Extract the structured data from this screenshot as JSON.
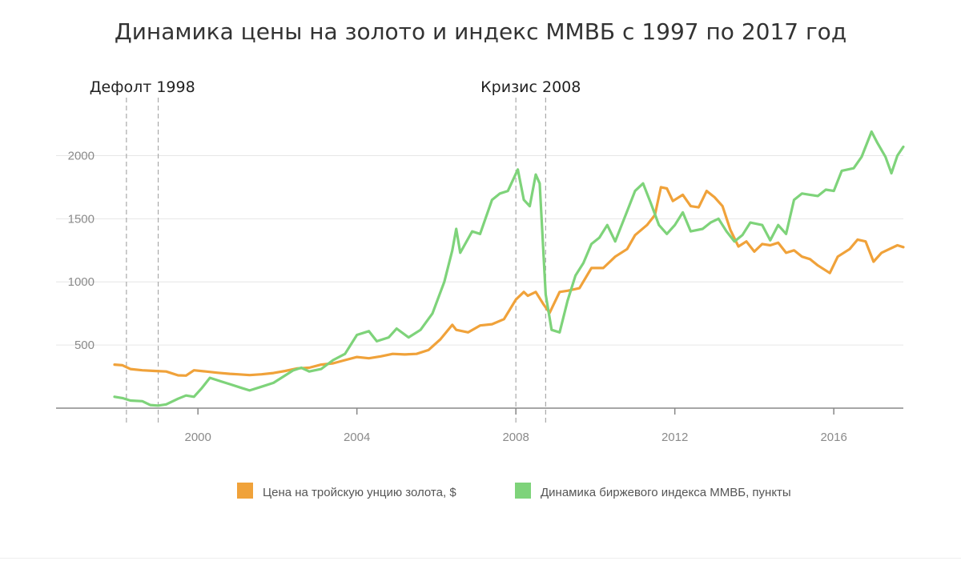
{
  "chart_data": {
    "type": "line",
    "title": "Динамика цены на золото и индекс ММВБ с 1997 по 2017 год",
    "xlabel": "",
    "ylabel": "",
    "xlim": [
      1997.8,
      2017.75
    ],
    "ylim": [
      0,
      2250
    ],
    "x_ticks": [
      2000,
      2004,
      2008,
      2012,
      2016
    ],
    "y_ticks": [
      500,
      1000,
      1500,
      2000
    ],
    "grid": true,
    "legend_position": "bottom",
    "events": [
      {
        "label": "Дефолт 1998",
        "x_start": 1998.2,
        "x_end": 1999.0
      },
      {
        "label": "Кризис 2008",
        "x_start": 2008.0,
        "x_end": 2008.75
      }
    ],
    "series": [
      {
        "name": "Цена на тройскую унцию золота, $",
        "color": "#f0a23a",
        "points": [
          [
            1997.9,
            345
          ],
          [
            1998.1,
            340
          ],
          [
            1998.3,
            310
          ],
          [
            1998.6,
            300
          ],
          [
            1998.9,
            295
          ],
          [
            1999.2,
            290
          ],
          [
            1999.5,
            260
          ],
          [
            1999.7,
            258
          ],
          [
            1999.9,
            300
          ],
          [
            2000.2,
            290
          ],
          [
            2000.5,
            280
          ],
          [
            2000.8,
            272
          ],
          [
            2001.0,
            268
          ],
          [
            2001.3,
            262
          ],
          [
            2001.6,
            268
          ],
          [
            2001.9,
            278
          ],
          [
            2002.2,
            295
          ],
          [
            2002.5,
            315
          ],
          [
            2002.8,
            320
          ],
          [
            2003.1,
            345
          ],
          [
            2003.4,
            355
          ],
          [
            2003.7,
            380
          ],
          [
            2004.0,
            405
          ],
          [
            2004.3,
            395
          ],
          [
            2004.6,
            410
          ],
          [
            2004.9,
            430
          ],
          [
            2005.2,
            425
          ],
          [
            2005.5,
            430
          ],
          [
            2005.8,
            460
          ],
          [
            2006.1,
            545
          ],
          [
            2006.4,
            660
          ],
          [
            2006.5,
            620
          ],
          [
            2006.8,
            600
          ],
          [
            2007.1,
            655
          ],
          [
            2007.4,
            665
          ],
          [
            2007.7,
            705
          ],
          [
            2008.0,
            860
          ],
          [
            2008.2,
            920
          ],
          [
            2008.3,
            890
          ],
          [
            2008.5,
            920
          ],
          [
            2008.7,
            820
          ],
          [
            2008.85,
            755
          ],
          [
            2009.1,
            920
          ],
          [
            2009.3,
            930
          ],
          [
            2009.6,
            950
          ],
          [
            2009.9,
            1110
          ],
          [
            2010.2,
            1110
          ],
          [
            2010.5,
            1200
          ],
          [
            2010.8,
            1260
          ],
          [
            2011.0,
            1370
          ],
          [
            2011.3,
            1450
          ],
          [
            2011.5,
            1530
          ],
          [
            2011.65,
            1750
          ],
          [
            2011.8,
            1740
          ],
          [
            2011.95,
            1640
          ],
          [
            2012.2,
            1690
          ],
          [
            2012.4,
            1600
          ],
          [
            2012.6,
            1590
          ],
          [
            2012.8,
            1720
          ],
          [
            2013.0,
            1670
          ],
          [
            2013.2,
            1600
          ],
          [
            2013.4,
            1410
          ],
          [
            2013.6,
            1280
          ],
          [
            2013.8,
            1320
          ],
          [
            2014.0,
            1240
          ],
          [
            2014.2,
            1300
          ],
          [
            2014.4,
            1290
          ],
          [
            2014.6,
            1310
          ],
          [
            2014.8,
            1230
          ],
          [
            2015.0,
            1250
          ],
          [
            2015.2,
            1200
          ],
          [
            2015.4,
            1180
          ],
          [
            2015.6,
            1130
          ],
          [
            2015.9,
            1070
          ],
          [
            2016.1,
            1200
          ],
          [
            2016.4,
            1260
          ],
          [
            2016.6,
            1335
          ],
          [
            2016.8,
            1320
          ],
          [
            2017.0,
            1160
          ],
          [
            2017.2,
            1230
          ],
          [
            2017.4,
            1260
          ],
          [
            2017.6,
            1290
          ],
          [
            2017.75,
            1275
          ]
        ]
      },
      {
        "name": "Динамика биржевого индекса ММВБ, пункты",
        "color": "#7ed37a",
        "points": [
          [
            1997.9,
            90
          ],
          [
            1998.1,
            80
          ],
          [
            1998.3,
            60
          ],
          [
            1998.6,
            55
          ],
          [
            1998.8,
            25
          ],
          [
            1999.0,
            20
          ],
          [
            1999.2,
            30
          ],
          [
            1999.5,
            75
          ],
          [
            1999.7,
            100
          ],
          [
            1999.9,
            90
          ],
          [
            2000.1,
            160
          ],
          [
            2000.3,
            240
          ],
          [
            2000.6,
            210
          ],
          [
            2000.8,
            190
          ],
          [
            2001.1,
            160
          ],
          [
            2001.3,
            140
          ],
          [
            2001.6,
            170
          ],
          [
            2001.9,
            200
          ],
          [
            2002.2,
            260
          ],
          [
            2002.4,
            300
          ],
          [
            2002.6,
            320
          ],
          [
            2002.8,
            290
          ],
          [
            2003.1,
            310
          ],
          [
            2003.4,
            380
          ],
          [
            2003.7,
            430
          ],
          [
            2004.0,
            580
          ],
          [
            2004.3,
            610
          ],
          [
            2004.5,
            530
          ],
          [
            2004.8,
            560
          ],
          [
            2005.0,
            630
          ],
          [
            2005.3,
            560
          ],
          [
            2005.6,
            620
          ],
          [
            2005.9,
            750
          ],
          [
            2006.2,
            1000
          ],
          [
            2006.4,
            1250
          ],
          [
            2006.5,
            1420
          ],
          [
            2006.6,
            1230
          ],
          [
            2006.9,
            1400
          ],
          [
            2007.1,
            1380
          ],
          [
            2007.4,
            1650
          ],
          [
            2007.6,
            1700
          ],
          [
            2007.8,
            1720
          ],
          [
            2008.05,
            1890
          ],
          [
            2008.2,
            1650
          ],
          [
            2008.35,
            1600
          ],
          [
            2008.5,
            1850
          ],
          [
            2008.6,
            1780
          ],
          [
            2008.75,
            900
          ],
          [
            2008.9,
            620
          ],
          [
            2009.1,
            600
          ],
          [
            2009.3,
            850
          ],
          [
            2009.5,
            1050
          ],
          [
            2009.7,
            1150
          ],
          [
            2009.9,
            1300
          ],
          [
            2010.1,
            1350
          ],
          [
            2010.3,
            1450
          ],
          [
            2010.5,
            1320
          ],
          [
            2010.8,
            1560
          ],
          [
            2011.0,
            1720
          ],
          [
            2011.2,
            1780
          ],
          [
            2011.4,
            1620
          ],
          [
            2011.6,
            1450
          ],
          [
            2011.8,
            1380
          ],
          [
            2012.0,
            1450
          ],
          [
            2012.2,
            1550
          ],
          [
            2012.4,
            1400
          ],
          [
            2012.7,
            1420
          ],
          [
            2012.9,
            1470
          ],
          [
            2013.1,
            1500
          ],
          [
            2013.3,
            1400
          ],
          [
            2013.5,
            1320
          ],
          [
            2013.7,
            1370
          ],
          [
            2013.9,
            1470
          ],
          [
            2014.2,
            1450
          ],
          [
            2014.4,
            1330
          ],
          [
            2014.6,
            1450
          ],
          [
            2014.8,
            1380
          ],
          [
            2015.0,
            1650
          ],
          [
            2015.2,
            1700
          ],
          [
            2015.4,
            1690
          ],
          [
            2015.6,
            1680
          ],
          [
            2015.8,
            1730
          ],
          [
            2016.0,
            1720
          ],
          [
            2016.2,
            1880
          ],
          [
            2016.5,
            1900
          ],
          [
            2016.7,
            1990
          ],
          [
            2016.95,
            2190
          ],
          [
            2017.1,
            2100
          ],
          [
            2017.3,
            1990
          ],
          [
            2017.45,
            1860
          ],
          [
            2017.6,
            2000
          ],
          [
            2017.75,
            2070
          ]
        ]
      }
    ]
  }
}
